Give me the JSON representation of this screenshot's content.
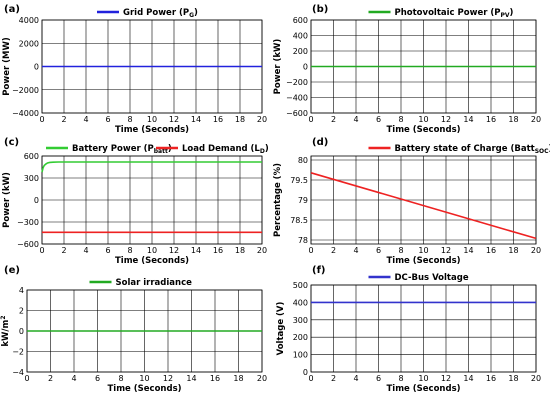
{
  "chart_data": [
    {
      "type": "line",
      "panel_label": "(a)",
      "xlabel": "Time (Seconds)",
      "ylabel": "Power (MW)",
      "xlim": [
        0,
        20
      ],
      "ylim": [
        -4000,
        4000
      ],
      "xticks": [
        0,
        2,
        4,
        6,
        8,
        10,
        12,
        14,
        16,
        18,
        20
      ],
      "yticks": [
        -4000,
        -2000,
        0,
        2000,
        4000
      ],
      "y_tick_labels": [
        "−4000",
        "−2000",
        "0",
        "2000",
        "4000"
      ],
      "grid": true,
      "legend_position": "top",
      "series": [
        {
          "name": "Grid Power (P",
          "name_sub": "G",
          "name_end": ")",
          "color": "#2222dd",
          "x": [
            0,
            20
          ],
          "y": [
            0,
            0
          ]
        }
      ]
    },
    {
      "type": "line",
      "panel_label": "(b)",
      "xlabel": "Time (Seconds)",
      "ylabel": "Power (kW)",
      "xlim": [
        0,
        20
      ],
      "ylim": [
        -600,
        600
      ],
      "xticks": [
        0,
        2,
        4,
        6,
        8,
        10,
        12,
        14,
        16,
        18,
        20
      ],
      "yticks": [
        -600,
        -400,
        -200,
        0,
        200,
        400,
        600
      ],
      "y_tick_labels": [
        "−600",
        "−400",
        "−200",
        "0",
        "200",
        "400",
        "600"
      ],
      "grid": true,
      "legend_position": "top",
      "series": [
        {
          "name": "Photovoltaic Power (P",
          "name_sub": "PV",
          "name_end": ")",
          "color": "#22aa22",
          "x": [
            0,
            20
          ],
          "y": [
            0,
            0
          ]
        }
      ]
    },
    {
      "type": "line",
      "panel_label": "(c)",
      "xlabel": "Time (Seconds)",
      "ylabel": "Power (kW)",
      "xlim": [
        0,
        20
      ],
      "ylim": [
        -600,
        600
      ],
      "xticks": [
        0,
        2,
        4,
        6,
        8,
        10,
        12,
        14,
        16,
        18,
        20
      ],
      "yticks": [
        -600,
        -300,
        0,
        300,
        600
      ],
      "y_tick_labels": [
        "−600",
        "−300",
        "0",
        "300",
        "600"
      ],
      "grid": true,
      "legend_position": "top",
      "series": [
        {
          "name": "Battery Power (P",
          "name_sub": "batt",
          "name_end": ")",
          "color": "#33cc33",
          "x": [
            0,
            0.1,
            0.2,
            0.35,
            0.5,
            0.7,
            1.0,
            1.5,
            2,
            4,
            8,
            12,
            16,
            20
          ],
          "y": [
            380,
            440,
            470,
            490,
            505,
            512,
            516,
            518,
            518,
            518,
            518,
            518,
            518,
            518
          ]
        },
        {
          "name": "Load Demand (L",
          "name_sub": "D",
          "name_end": ")",
          "color": "#ee2222",
          "x": [
            0,
            20
          ],
          "y": [
            -440,
            -440
          ]
        }
      ]
    },
    {
      "type": "line",
      "panel_label": "(d)",
      "xlabel": "Time (Seconds)",
      "ylabel": "Percentage (%)",
      "xlim": [
        0,
        20
      ],
      "ylim": [
        77.9,
        80.1
      ],
      "xticks": [
        0,
        2,
        4,
        6,
        8,
        10,
        12,
        14,
        16,
        18,
        20
      ],
      "yticks": [
        78,
        78.5,
        79,
        79.5,
        80
      ],
      "y_tick_labels": [
        "78",
        "78.5",
        "79",
        "79.5",
        "80"
      ],
      "grid": true,
      "legend_position": "top",
      "series": [
        {
          "name": "Battery state of Charge (Batt",
          "name_sub": "SOC",
          "name_end": ")",
          "color": "#ee2222",
          "x": [
            0,
            20
          ],
          "y": [
            79.68,
            78.04
          ]
        }
      ]
    },
    {
      "type": "line",
      "panel_label": "(e)",
      "xlabel": "Time (Seconds)",
      "ylabel": "kW/m",
      "ylabel_sup": "2",
      "xlim": [
        0,
        20
      ],
      "ylim": [
        -4,
        4
      ],
      "xticks": [
        0,
        2,
        4,
        6,
        8,
        10,
        12,
        14,
        16,
        18,
        20
      ],
      "yticks": [
        -4,
        -2,
        0,
        2,
        4
      ],
      "y_tick_labels": [
        "−4",
        "−2",
        "0",
        "2",
        "4"
      ],
      "grid": true,
      "legend_position": "top",
      "series": [
        {
          "name": "Solar irradiance",
          "name_sub": "",
          "name_end": "",
          "color": "#22aa22",
          "x": [
            0,
            20
          ],
          "y": [
            0,
            0
          ]
        }
      ]
    },
    {
      "type": "line",
      "panel_label": "(f)",
      "xlabel": "Time (Seconds)",
      "ylabel": "Voltage (V)",
      "xlim": [
        0,
        20
      ],
      "ylim": [
        0,
        500
      ],
      "xticks": [
        0,
        2,
        4,
        6,
        8,
        10,
        12,
        14,
        16,
        18,
        20
      ],
      "yticks": [
        0,
        100,
        200,
        300,
        400,
        500
      ],
      "y_tick_labels": [
        "0",
        "100",
        "200",
        "300",
        "400",
        "500"
      ],
      "grid": true,
      "legend_position": "top",
      "series": [
        {
          "name": "DC-Bus Voltage",
          "name_sub": "",
          "name_end": "",
          "color": "#3333cc",
          "x": [
            0,
            20
          ],
          "y": [
            400,
            400
          ]
        }
      ]
    }
  ]
}
